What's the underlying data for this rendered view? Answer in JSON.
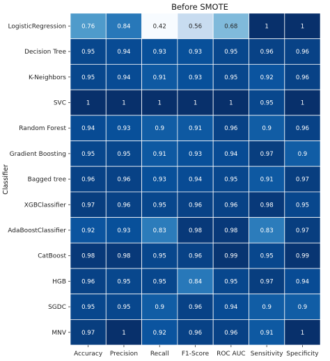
{
  "chart_data": {
    "type": "heatmap",
    "title": "Before SMOTE",
    "xlabel": "",
    "ylabel": "Classifier",
    "columns": [
      "Accuracy",
      "Precision",
      "Recall",
      "F1-Score",
      "ROC AUC",
      "Sensitivity",
      "Specificity"
    ],
    "rows": [
      "LogisticRegression",
      "Decision Tree",
      "K-Neighbors",
      "SVC",
      "Random Forest",
      "Gradient Boosting",
      "Bagged tree",
      "XGBClassifier",
      "AdaBoostClassifier",
      "CatBoost",
      "HGB",
      "SGDC",
      "MNV"
    ],
    "values": [
      [
        0.76,
        0.84,
        0.42,
        0.56,
        0.68,
        1,
        1
      ],
      [
        0.95,
        0.94,
        0.93,
        0.93,
        0.95,
        0.96,
        0.96
      ],
      [
        0.95,
        0.94,
        0.91,
        0.93,
        0.95,
        0.92,
        0.96
      ],
      [
        1,
        1,
        1,
        1,
        1,
        0.95,
        1
      ],
      [
        0.94,
        0.93,
        0.9,
        0.91,
        0.96,
        0.9,
        0.96
      ],
      [
        0.95,
        0.95,
        0.91,
        0.93,
        0.94,
        0.97,
        0.9
      ],
      [
        0.96,
        0.96,
        0.93,
        0.94,
        0.95,
        0.91,
        0.97
      ],
      [
        0.97,
        0.96,
        0.95,
        0.96,
        0.96,
        0.98,
        0.95
      ],
      [
        0.92,
        0.93,
        0.83,
        0.98,
        0.98,
        0.83,
        0.97
      ],
      [
        0.98,
        0.98,
        0.95,
        0.96,
        0.99,
        0.95,
        0.99
      ],
      [
        0.96,
        0.95,
        0.95,
        0.84,
        0.95,
        0.97,
        0.94
      ],
      [
        0.95,
        0.95,
        0.9,
        0.96,
        0.94,
        0.9,
        0.9
      ],
      [
        0.97,
        1,
        0.92,
        0.96,
        0.96,
        0.91,
        1
      ]
    ],
    "colormap": "Blues",
    "grid": true,
    "legend": "none",
    "colors": {
      "low": "#f7fbff",
      "high": "#08306b",
      "cell_border": "#ffffff"
    }
  }
}
